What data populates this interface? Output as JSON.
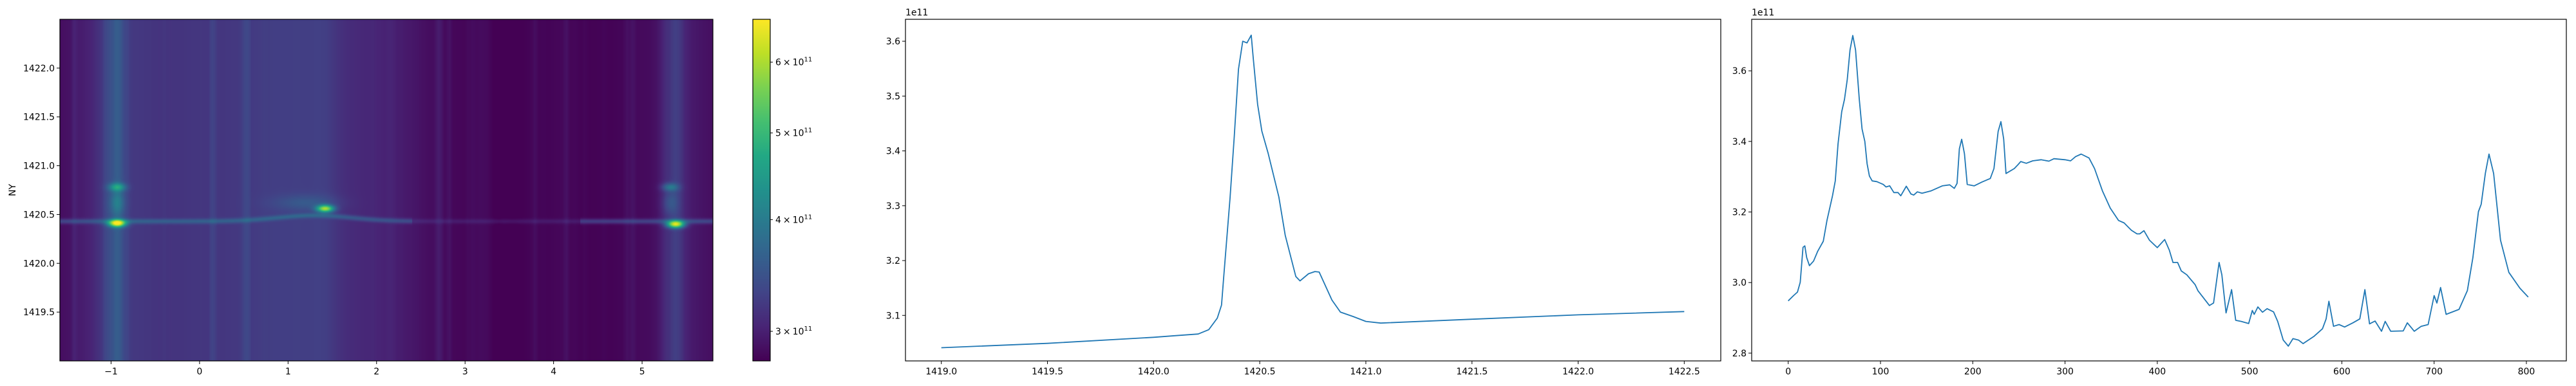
{
  "chart_data": [
    {
      "type": "heatmap",
      "ylabel": "NY",
      "xlim": [
        -1.578,
        5.8
      ],
      "ylim": [
        1419.0,
        1422.5
      ],
      "xticks": [
        -1,
        0,
        1,
        2,
        3,
        4,
        5
      ],
      "xtick_labels": [
        "−1",
        "0",
        "1",
        "2",
        "3",
        "4",
        "5"
      ],
      "yticks": [
        1419.5,
        1420.0,
        1420.5,
        1421.0,
        1421.5,
        1422.0
      ],
      "ytick_labels": [
        "1419.5",
        "1420.0",
        "1420.5",
        "1421.0",
        "1421.5",
        "1422.0"
      ],
      "colormap": "viridis",
      "color_scale": "log",
      "clim": [
        278000000000.0,
        670000000000.0
      ],
      "colorbar": {
        "ticks": [
          {
            "value": 300000000000.0,
            "mantissa": "3",
            "times": "×",
            "base": "10",
            "exponent": "11"
          },
          {
            "value": 400000000000.0,
            "mantissa": "4",
            "times": "×",
            "base": "10",
            "exponent": "11"
          },
          {
            "value": 500000000000.0,
            "mantissa": "5",
            "times": "×",
            "base": "10",
            "exponent": "11"
          },
          {
            "value": 600000000000.0,
            "mantissa": "6",
            "times": "×",
            "base": "10",
            "exponent": "11"
          }
        ]
      },
      "hotspots": [
        {
          "x": -0.93,
          "y": 1420.41,
          "value": 660000000000.0
        },
        {
          "x": -0.93,
          "y": 1420.78,
          "value": 440000000000.0
        },
        {
          "x": 1.42,
          "y": 1420.56,
          "value": 590000000000.0
        },
        {
          "x": 5.38,
          "y": 1420.4,
          "value": 640000000000.0
        },
        {
          "x": 5.32,
          "y": 1420.78,
          "value": 400000000000.0
        }
      ]
    },
    {
      "type": "line",
      "offset_text": "1e11",
      "color": "#1f77b4",
      "xlim": [
        1418.831,
        1422.672
      ],
      "ylim": [
        3.017,
        3.64
      ],
      "xticks": [
        1419.0,
        1419.5,
        1420.0,
        1420.5,
        1421.0,
        1421.5,
        1422.0,
        1422.5
      ],
      "xtick_labels": [
        "1419.0",
        "1419.5",
        "1420.0",
        "1420.5",
        "1421.0",
        "1421.5",
        "1422.0",
        "1422.5"
      ],
      "yticks": [
        3.1,
        3.2,
        3.3,
        3.4,
        3.5,
        3.6
      ],
      "ytick_labels": [
        "3.1",
        "3.2",
        "3.3",
        "3.4",
        "3.5",
        "3.6"
      ],
      "x": [
        1419.0,
        1419.5,
        1420.0,
        1420.1,
        1420.21,
        1420.26,
        1420.3,
        1420.32,
        1420.33,
        1420.36,
        1420.38,
        1420.4,
        1420.42,
        1420.44,
        1420.46,
        1420.47,
        1420.49,
        1420.51,
        1420.54,
        1420.59,
        1420.62,
        1420.67,
        1420.69,
        1420.73,
        1420.76,
        1420.78,
        1420.84,
        1420.88,
        1420.94,
        1421.0,
        1421.07,
        1421.5,
        1422.0,
        1422.5
      ],
      "y": [
        3.041,
        3.049,
        3.06,
        3.063,
        3.066,
        3.074,
        3.095,
        3.119,
        3.169,
        3.314,
        3.427,
        3.549,
        3.6,
        3.597,
        3.611,
        3.567,
        3.485,
        3.436,
        3.395,
        3.316,
        3.246,
        3.171,
        3.163,
        3.176,
        3.18,
        3.179,
        3.128,
        3.106,
        3.098,
        3.089,
        3.086,
        3.093,
        3.101,
        3.107
      ]
    },
    {
      "type": "line",
      "offset_text": "1e11",
      "color": "#1f77b4",
      "xlim": [
        -39.6,
        843.3
      ],
      "ylim": [
        2.778,
        3.746
      ],
      "xticks": [
        0,
        100,
        200,
        300,
        400,
        500,
        600,
        700,
        800
      ],
      "xtick_labels": [
        "0",
        "100",
        "200",
        "300",
        "400",
        "500",
        "600",
        "700",
        "800"
      ],
      "yticks": [
        2.8,
        3.0,
        3.2,
        3.4,
        3.6
      ],
      "ytick_labels": [
        "2.8",
        "3.0",
        "3.2",
        "3.4",
        "3.6"
      ],
      "x": [
        0,
        5.8,
        10,
        13,
        16,
        18,
        20,
        23,
        27.5,
        32,
        38,
        42,
        48,
        51,
        54,
        58,
        61,
        64,
        67,
        70,
        73,
        77,
        80,
        83,
        85.5,
        88,
        91,
        96,
        103,
        106,
        110,
        114.5,
        119,
        122,
        128,
        133,
        136,
        140,
        145,
        155,
        167,
        175,
        180,
        183,
        185.5,
        188,
        191,
        194,
        201.5,
        210,
        219,
        223,
        227.5,
        230.5,
        233.5,
        236,
        245,
        249,
        252,
        258,
        265,
        274,
        282.5,
        288,
        300,
        306,
        311.5,
        317.5,
        326,
        332,
        340.5,
        349,
        358,
        364,
        372,
        378,
        381,
        385.5,
        391.5,
        400,
        408,
        413,
        417,
        422,
        426,
        432,
        441,
        444,
        456.5,
        461,
        467,
        470,
        474.5,
        480.5,
        485,
        491,
        499,
        503,
        505,
        509,
        514,
        519,
        526,
        530.5,
        536.5,
        542,
        547,
        553,
        558,
        570,
        579,
        583,
        586,
        591,
        597,
        603,
        612,
        619.5,
        625,
        630,
        636,
        643,
        647,
        653,
        666.5,
        671,
        678.5,
        686,
        693.5,
        700,
        703,
        707,
        713,
        727,
        736,
        742,
        748,
        751,
        755.5,
        759.5,
        764.5,
        772,
        781,
        793,
        802
      ],
      "y": [
        2.948,
        2.963,
        2.973,
        3.001,
        3.1,
        3.104,
        3.071,
        3.048,
        3.061,
        3.089,
        3.117,
        3.176,
        3.246,
        3.288,
        3.393,
        3.484,
        3.519,
        3.575,
        3.659,
        3.7,
        3.659,
        3.519,
        3.435,
        3.4,
        3.337,
        3.302,
        3.288,
        3.286,
        3.278,
        3.271,
        3.274,
        3.255,
        3.255,
        3.246,
        3.273,
        3.251,
        3.248,
        3.257,
        3.253,
        3.26,
        3.274,
        3.277,
        3.267,
        3.281,
        3.379,
        3.406,
        3.365,
        3.278,
        3.274,
        3.285,
        3.295,
        3.323,
        3.428,
        3.456,
        3.407,
        3.309,
        3.323,
        3.334,
        3.343,
        3.338,
        3.345,
        3.348,
        3.344,
        3.351,
        3.348,
        3.345,
        3.357,
        3.364,
        3.353,
        3.323,
        3.26,
        3.211,
        3.176,
        3.169,
        3.148,
        3.138,
        3.138,
        3.147,
        3.12,
        3.099,
        3.122,
        3.092,
        3.057,
        3.057,
        3.033,
        3.022,
        2.994,
        2.977,
        2.935,
        2.942,
        3.057,
        3.022,
        2.914,
        2.98,
        2.893,
        2.89,
        2.884,
        2.921,
        2.91,
        2.931,
        2.916,
        2.926,
        2.917,
        2.89,
        2.837,
        2.82,
        2.841,
        2.837,
        2.827,
        2.848,
        2.869,
        2.897,
        2.947,
        2.876,
        2.881,
        2.874,
        2.886,
        2.897,
        2.98,
        2.883,
        2.891,
        2.862,
        2.89,
        2.862,
        2.863,
        2.886,
        2.862,
        2.876,
        2.881,
        2.963,
        2.942,
        2.986,
        2.91,
        2.924,
        2.977,
        3.071,
        3.201,
        3.222,
        3.309,
        3.364,
        3.309,
        3.12,
        3.029,
        2.984,
        2.959
      ]
    }
  ]
}
